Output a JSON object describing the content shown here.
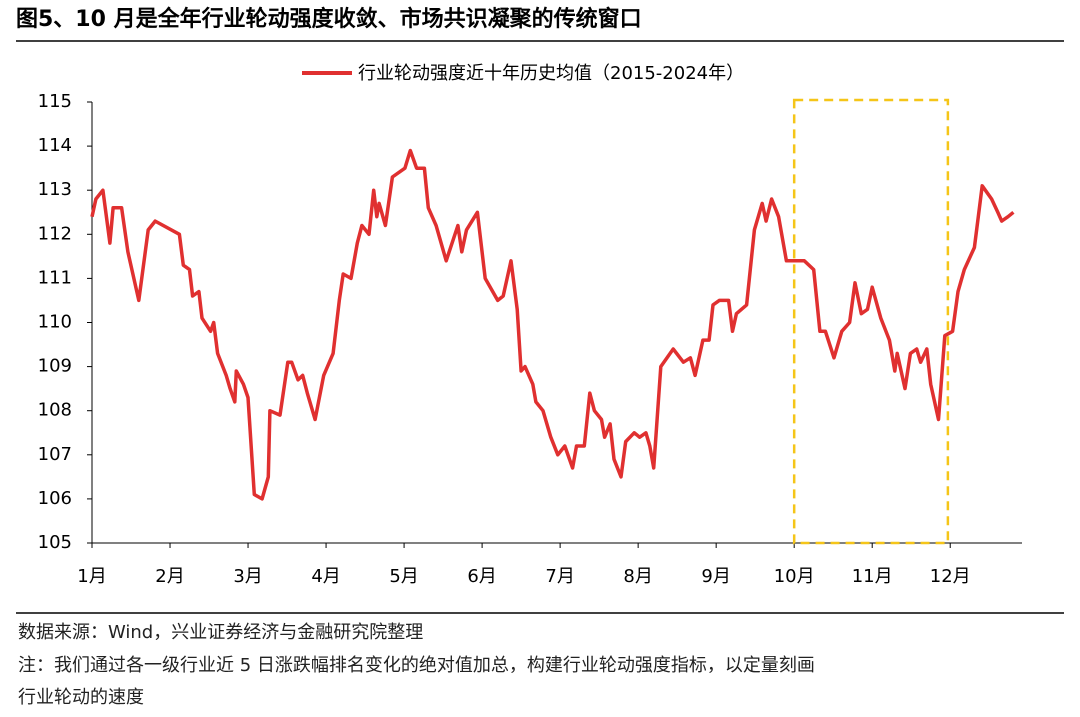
{
  "chart_data": {
    "type": "line",
    "title": "图5、10 月是全年行业轮动强度收敛、市场共识凝聚的传统窗口",
    "x": [
      1.0,
      1.05,
      1.14,
      1.23,
      1.27,
      1.38,
      1.46,
      1.6,
      1.72,
      1.81,
      2.12,
      2.17,
      2.25,
      2.29,
      2.37,
      2.41,
      2.52,
      2.56,
      2.61,
      2.72,
      2.77,
      2.83,
      2.85,
      2.94,
      3.0,
      3.08,
      3.18,
      3.26,
      3.28,
      3.41,
      3.51,
      3.56,
      3.64,
      3.7,
      3.76,
      3.86,
      3.97,
      4.09,
      4.17,
      4.22,
      4.32,
      4.4,
      4.46,
      4.55,
      4.61,
      4.65,
      4.68,
      4.76,
      4.85,
      5.01,
      5.08,
      5.16,
      5.26,
      5.31,
      5.41,
      5.54,
      5.69,
      5.74,
      5.8,
      5.94,
      6.04,
      6.2,
      6.27,
      6.37,
      6.45,
      6.5,
      6.55,
      6.65,
      6.69,
      6.78,
      6.88,
      6.97,
      7.06,
      7.16,
      7.21,
      7.31,
      7.38,
      7.44,
      7.53,
      7.57,
      7.64,
      7.69,
      7.78,
      7.84,
      7.95,
      8.02,
      8.1,
      8.15,
      8.2,
      8.29,
      8.45,
      8.58,
      8.67,
      8.73,
      8.83,
      8.91,
      8.96,
      9.04,
      9.16,
      9.21,
      9.26,
      9.39,
      9.49,
      9.59,
      9.64,
      9.71,
      9.8,
      9.9,
      10.13,
      10.25,
      10.33,
      10.4,
      10.51,
      10.61,
      10.71,
      10.78,
      10.86,
      10.94,
      11.0,
      11.11,
      11.22,
      11.29,
      11.32,
      11.42,
      11.49,
      11.57,
      11.62,
      11.7,
      11.75,
      11.85,
      11.93,
      12.03,
      12.1,
      12.18,
      12.31,
      12.36,
      12.41,
      12.53,
      12.61,
      12.66,
      12.74,
      12.81
    ],
    "series": [
      {
        "name": "行业轮动强度近十年历史均值（2015-2024年）",
        "color": "#e03030",
        "values": [
          112.4,
          112.8,
          113.0,
          111.8,
          112.6,
          112.6,
          111.6,
          110.5,
          112.1,
          112.3,
          112.0,
          111.3,
          111.2,
          110.6,
          110.7,
          110.1,
          109.8,
          110.0,
          109.3,
          108.8,
          108.5,
          108.2,
          108.9,
          108.6,
          108.3,
          106.1,
          106.0,
          106.5,
          108.0,
          107.9,
          109.1,
          109.1,
          108.7,
          108.8,
          108.4,
          107.8,
          108.8,
          109.3,
          110.5,
          111.1,
          111.0,
          111.8,
          112.2,
          112.0,
          113.0,
          112.4,
          112.7,
          112.2,
          113.3,
          113.5,
          113.9,
          113.5,
          113.5,
          112.6,
          112.2,
          111.4,
          112.2,
          111.6,
          112.1,
          112.5,
          111.0,
          110.5,
          110.6,
          111.4,
          110.3,
          108.9,
          109.0,
          108.6,
          108.2,
          108.0,
          107.4,
          107.0,
          107.2,
          106.7,
          107.2,
          107.2,
          108.4,
          108.0,
          107.8,
          107.4,
          107.7,
          106.9,
          106.5,
          107.3,
          107.5,
          107.4,
          107.5,
          107.2,
          106.7,
          109.0,
          109.4,
          109.1,
          109.2,
          108.8,
          109.6,
          109.6,
          110.4,
          110.5,
          110.5,
          109.8,
          110.2,
          110.4,
          112.1,
          112.7,
          112.3,
          112.8,
          112.4,
          111.4,
          111.4,
          111.2,
          109.8,
          109.8,
          109.2,
          109.8,
          110.0,
          110.9,
          110.2,
          110.3,
          110.8,
          110.1,
          109.6,
          108.9,
          109.3,
          108.5,
          109.3,
          109.4,
          109.1,
          109.4,
          108.6,
          107.8,
          109.7,
          109.8,
          110.7,
          111.2,
          111.7,
          112.4,
          113.1,
          112.8,
          112.5,
          112.3,
          112.4,
          112.5
        ]
      }
    ],
    "xlim": [
      1,
      12.92
    ],
    "xticks": [
      {
        "value": 1,
        "label": "1月"
      },
      {
        "value": 2,
        "label": "2月"
      },
      {
        "value": 3,
        "label": "3月"
      },
      {
        "value": 4,
        "label": "4月"
      },
      {
        "value": 5,
        "label": "5月"
      },
      {
        "value": 6,
        "label": "6月"
      },
      {
        "value": 7,
        "label": "7月"
      },
      {
        "value": 8,
        "label": "8月"
      },
      {
        "value": 9,
        "label": "9月"
      },
      {
        "value": 10,
        "label": "10月"
      },
      {
        "value": 11,
        "label": "11月"
      },
      {
        "value": 12,
        "label": "12月"
      }
    ],
    "ylim": [
      105,
      115
    ],
    "yticks": [
      105,
      106,
      107,
      108,
      109,
      110,
      111,
      112,
      113,
      114,
      115
    ],
    "highlight": {
      "x": [
        10,
        11.97
      ],
      "color": "#f5c518"
    },
    "legend": "top"
  },
  "notes": [
    "数据来源：Wind，兴业证券经济与金融研究院整理",
    "注：我们通过各一级行业近 5 日涨跌幅排名变化的绝对值加总，构建行业轮动强度指标，以定量刻画",
    "行业轮动的速度"
  ]
}
